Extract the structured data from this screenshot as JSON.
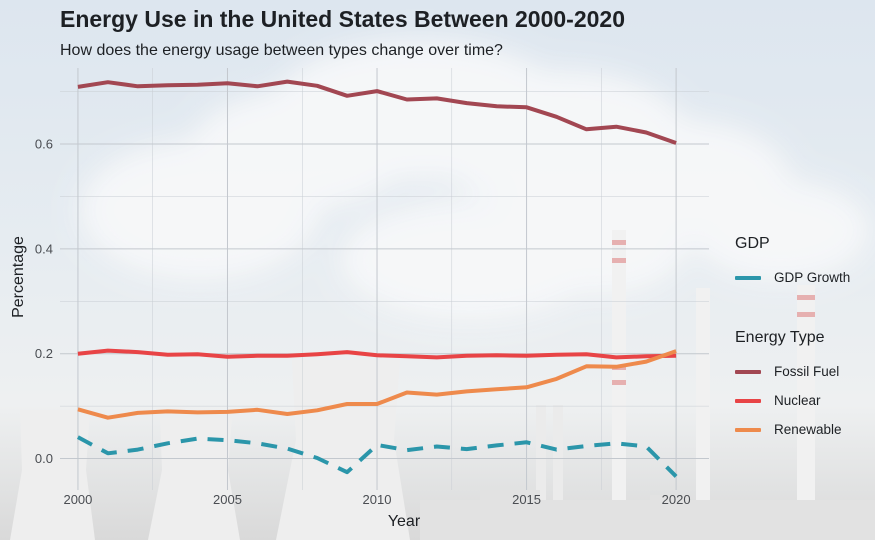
{
  "title": "Energy Use in the United States Between 2000-2020",
  "subtitle": "How does the energy usage between types change over time?",
  "chart_data": {
    "type": "line",
    "xlabel": "Year",
    "ylabel": "Percentage",
    "xlim": [
      1999.4,
      2021.1
    ],
    "ylim": [
      -0.06,
      0.745
    ],
    "x_ticks": [
      "2000",
      "2005",
      "2010",
      "2015",
      "2020"
    ],
    "y_ticks": [
      "0.0",
      "0.2",
      "0.4",
      "0.6"
    ],
    "grid": true,
    "x": [
      2000,
      2001,
      2002,
      2003,
      2004,
      2005,
      2006,
      2007,
      2008,
      2009,
      2010,
      2011,
      2012,
      2013,
      2014,
      2015,
      2016,
      2017,
      2018,
      2019,
      2020
    ],
    "series": [
      {
        "name": "GDP Growth",
        "group": "GDP",
        "color": "#2b96aa",
        "dashed": true,
        "values": [
          0.041,
          0.01,
          0.017,
          0.029,
          0.038,
          0.035,
          0.029,
          0.019,
          0.001,
          -0.026,
          0.026,
          0.016,
          0.023,
          0.018,
          0.025,
          0.031,
          0.017,
          0.024,
          0.029,
          0.023,
          -0.034
        ]
      },
      {
        "name": "Fossil Fuel",
        "group": "Energy Type",
        "color": "#a24752",
        "dashed": false,
        "values": [
          0.709,
          0.718,
          0.71,
          0.712,
          0.713,
          0.716,
          0.71,
          0.719,
          0.711,
          0.692,
          0.701,
          0.685,
          0.687,
          0.678,
          0.672,
          0.67,
          0.652,
          0.628,
          0.633,
          0.622,
          0.602
        ]
      },
      {
        "name": "Nuclear",
        "group": "Energy Type",
        "color": "#e84446",
        "dashed": false,
        "values": [
          0.2,
          0.206,
          0.203,
          0.198,
          0.199,
          0.194,
          0.196,
          0.196,
          0.199,
          0.203,
          0.197,
          0.195,
          0.193,
          0.196,
          0.197,
          0.196,
          0.198,
          0.199,
          0.193,
          0.195,
          0.196
        ]
      },
      {
        "name": "Renewable",
        "group": "Energy Type",
        "color": "#ee8a4c",
        "dashed": false,
        "values": [
          0.094,
          0.078,
          0.087,
          0.09,
          0.088,
          0.089,
          0.093,
          0.085,
          0.092,
          0.104,
          0.104,
          0.126,
          0.122,
          0.128,
          0.132,
          0.136,
          0.152,
          0.176,
          0.175,
          0.185,
          0.205
        ]
      }
    ]
  },
  "legend": {
    "gdp_title": "GDP",
    "gdp_items": [
      "GDP Growth"
    ],
    "energy_title": "Energy Type",
    "energy_items": [
      "Fossil Fuel",
      "Nuclear",
      "Renewable"
    ],
    "placement": "right"
  }
}
